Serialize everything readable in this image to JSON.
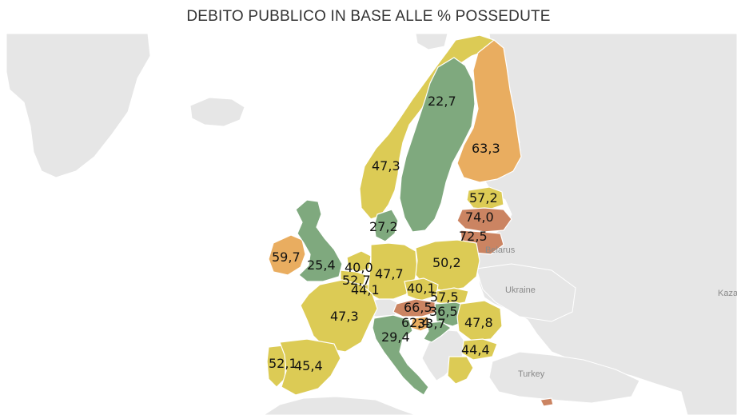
{
  "title": "DEBITO PUBBLICO IN BASE ALLE % POSSEDUTE",
  "colors": {
    "background": "#ffffff",
    "land": "#e6e6e6",
    "low": "#7fa97e",
    "mid": "#dccb55",
    "high": "#e9ad60",
    "very_high": "#cb8462",
    "text": "#111111"
  },
  "place_labels": [
    "Belarus",
    "Ukraine",
    "Turkey",
    "Kazak"
  ],
  "regions": [
    {
      "name": "Sweden",
      "value": "22,7",
      "band": "low"
    },
    {
      "name": "Finland",
      "value": "63,3",
      "band": "high"
    },
    {
      "name": "Norway",
      "value": "47,3",
      "band": "mid"
    },
    {
      "name": "Estonia",
      "value": "57,2",
      "band": "mid"
    },
    {
      "name": "Latvia",
      "value": "74,0",
      "band": "very_high"
    },
    {
      "name": "Lithuania",
      "value": "72,5",
      "band": "very_high"
    },
    {
      "name": "Denmark",
      "value": "27,2",
      "band": "low"
    },
    {
      "name": "Ireland",
      "value": "59,7",
      "band": "high"
    },
    {
      "name": "United Kingdom",
      "value": "25,4",
      "band": "low"
    },
    {
      "name": "Netherlands",
      "value": "40,0",
      "band": "mid"
    },
    {
      "name": "Belgium",
      "value": "52,7",
      "band": "mid"
    },
    {
      "name": "Luxembourg",
      "value": "44,1",
      "band": "mid"
    },
    {
      "name": "Germany",
      "value": "47,7",
      "band": "mid"
    },
    {
      "name": "Poland",
      "value": "50,2",
      "band": "mid"
    },
    {
      "name": "Czechia",
      "value": "40,1",
      "band": "mid"
    },
    {
      "name": "Slovakia",
      "value": "57,5",
      "band": "mid"
    },
    {
      "name": "Austria",
      "value": "66,5",
      "band": "very_high"
    },
    {
      "name": "Hungary",
      "value": "36,5",
      "band": "low"
    },
    {
      "name": "Slovenia",
      "value": "62,4",
      "band": "high"
    },
    {
      "name": "Croatia",
      "value": "33,7",
      "band": "low"
    },
    {
      "name": "Romania",
      "value": "47,8",
      "band": "mid"
    },
    {
      "name": "Bulgaria",
      "value": "44,4",
      "band": "mid"
    },
    {
      "name": "France",
      "value": "47,3",
      "band": "mid"
    },
    {
      "name": "Italy",
      "value": "29,4",
      "band": "low"
    },
    {
      "name": "Portugal",
      "value": "52,1",
      "band": "mid"
    },
    {
      "name": "Spain",
      "value": "45,4",
      "band": "mid"
    },
    {
      "name": "Greece",
      "value": "",
      "band": "mid"
    },
    {
      "name": "Cyprus",
      "value": "",
      "band": "very_high"
    }
  ]
}
